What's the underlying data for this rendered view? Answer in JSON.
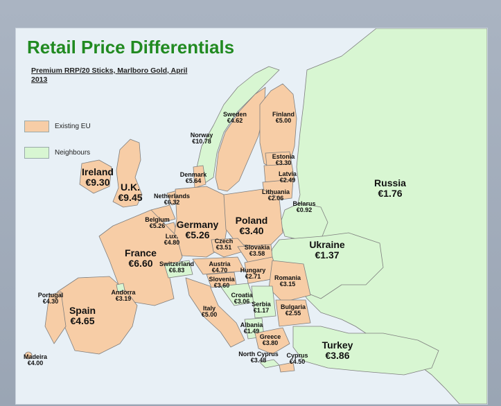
{
  "title": "Retail Price Differentials",
  "subtitle": "Premium RRP/20 Sticks, Marlboro Gold, April 2013",
  "colors": {
    "existing_eu": "#f7cda6",
    "neighbours": "#d8f6d2",
    "title": "#218a21",
    "sea": "#e8f0f6"
  },
  "legend": [
    {
      "label": "Existing EU",
      "color": "#f7cda6"
    },
    {
      "label": "Neighbours",
      "color": "#d8f6d2"
    }
  ],
  "countries": [
    {
      "key": "ireland",
      "name": "Ireland",
      "price": "€9.30",
      "group": "existing_eu"
    },
    {
      "key": "uk",
      "name": "U.K.",
      "price": "€9.45",
      "group": "existing_eu"
    },
    {
      "key": "norway",
      "name": "Norway",
      "price": "€10.78",
      "group": "neighbours"
    },
    {
      "key": "sweden",
      "name": "Sweden",
      "price": "€4.62",
      "group": "existing_eu"
    },
    {
      "key": "finland",
      "name": "Finland",
      "price": "€5.00",
      "group": "existing_eu"
    },
    {
      "key": "denmark",
      "name": "Denmark",
      "price": "€5.64",
      "group": "existing_eu"
    },
    {
      "key": "estonia",
      "name": "Estonia",
      "price": "€3.30",
      "group": "existing_eu"
    },
    {
      "key": "latvia",
      "name": "Latvia",
      "price": "€2.49",
      "group": "existing_eu"
    },
    {
      "key": "lithuania",
      "name": "Lithuania",
      "price": "€2.06",
      "group": "existing_eu"
    },
    {
      "key": "netherlands",
      "name": "Netherlands",
      "price": "€6.32",
      "group": "existing_eu"
    },
    {
      "key": "belgium",
      "name": "Belgium",
      "price": "€5.26",
      "group": "existing_eu"
    },
    {
      "key": "luxembourg",
      "name": "Lux.",
      "price": "€4.80",
      "group": "existing_eu"
    },
    {
      "key": "germany",
      "name": "Germany",
      "price": "€5.26",
      "group": "existing_eu"
    },
    {
      "key": "poland",
      "name": "Poland",
      "price": "€3.40",
      "group": "existing_eu"
    },
    {
      "key": "belarus",
      "name": "Belarus",
      "price": "€0.92",
      "group": "neighbours"
    },
    {
      "key": "russia",
      "name": "Russia",
      "price": "€1.76",
      "group": "neighbours"
    },
    {
      "key": "france",
      "name": "France",
      "price": "€6.60",
      "group": "existing_eu"
    },
    {
      "key": "czech",
      "name": "Czech",
      "price": "€3.51",
      "group": "existing_eu"
    },
    {
      "key": "slovakia",
      "name": "Slovakia",
      "price": "€3.58",
      "group": "existing_eu"
    },
    {
      "key": "ukraine",
      "name": "Ukraine",
      "price": "€1.37",
      "group": "neighbours"
    },
    {
      "key": "switzerland",
      "name": "Switzerland",
      "price": "€6.83",
      "group": "neighbours"
    },
    {
      "key": "austria",
      "name": "Austria",
      "price": "€4.70",
      "group": "existing_eu"
    },
    {
      "key": "hungary",
      "name": "Hungary",
      "price": "€2.71",
      "group": "existing_eu"
    },
    {
      "key": "slovenia",
      "name": "Slovenia",
      "price": "€3.60",
      "group": "existing_eu"
    },
    {
      "key": "romania",
      "name": "Romania",
      "price": "€3.15",
      "group": "existing_eu"
    },
    {
      "key": "portugal",
      "name": "Portugal",
      "price": "€4.30",
      "group": "existing_eu"
    },
    {
      "key": "andorra",
      "name": "Andorra",
      "price": "€3.19",
      "group": "neighbours"
    },
    {
      "key": "croatia",
      "name": "Croatia",
      "price": "€3.06",
      "group": "neighbours"
    },
    {
      "key": "spain",
      "name": "Spain",
      "price": "€4.65",
      "group": "existing_eu"
    },
    {
      "key": "serbia",
      "name": "Serbia",
      "price": "€1.17",
      "group": "neighbours"
    },
    {
      "key": "italy",
      "name": "Italy",
      "price": "€5.00",
      "group": "existing_eu"
    },
    {
      "key": "bulgaria",
      "name": "Bulgaria",
      "price": "€2.55",
      "group": "existing_eu"
    },
    {
      "key": "albania",
      "name": "Albania",
      "price": "€1.49",
      "group": "neighbours"
    },
    {
      "key": "greece",
      "name": "Greece",
      "price": "€3.80",
      "group": "existing_eu"
    },
    {
      "key": "turkey",
      "name": "Turkey",
      "price": "€3.86",
      "group": "neighbours"
    },
    {
      "key": "madeira",
      "name": "Madeira",
      "price": "€4.00",
      "group": "existing_eu"
    },
    {
      "key": "north_cyprus",
      "name": "North Cyprus",
      "price": "€3.48",
      "group": "neighbours"
    },
    {
      "key": "cyprus",
      "name": "Cyprus",
      "price": "€4.50",
      "group": "existing_eu"
    }
  ]
}
